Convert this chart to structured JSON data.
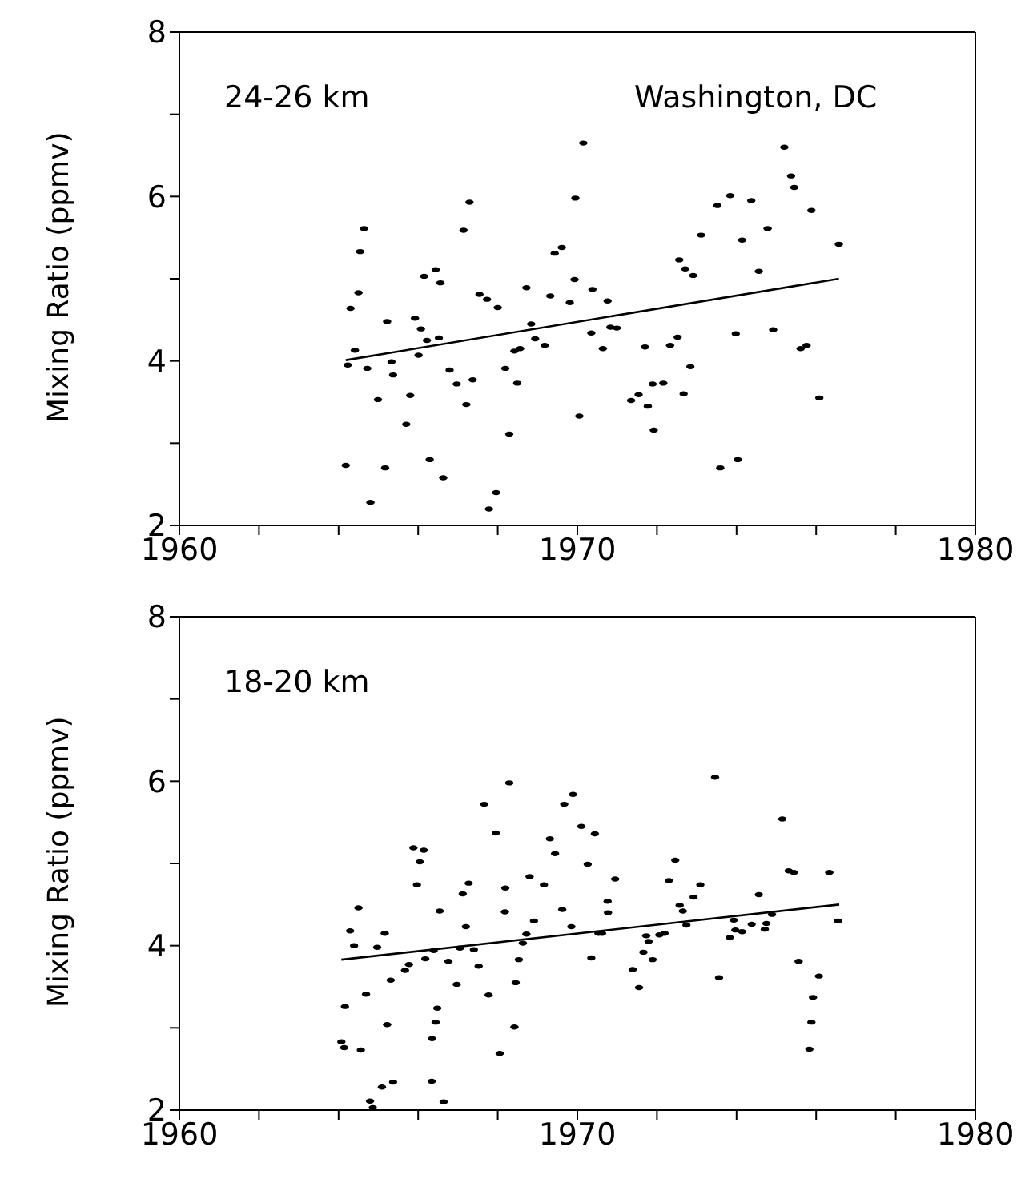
{
  "chart_data": [
    {
      "type": "scatter",
      "ylabel": "Mixing Ratio (ppmv)",
      "annotations": [
        "24-26 km",
        "Washington, DC"
      ],
      "xlim": [
        1960,
        1980
      ],
      "ylim": [
        2,
        8
      ],
      "xticks": [
        1960,
        {
          "value": 1962,
          "label": null
        },
        {
          "value": 1964,
          "label": null
        },
        {
          "value": 1966,
          "label": null
        },
        {
          "value": 1968,
          "label": null
        },
        1970,
        {
          "value": 1972,
          "label": null
        },
        {
          "value": 1974,
          "label": null
        },
        {
          "value": 1976,
          "label": null
        },
        {
          "value": 1978,
          "label": null
        },
        1980
      ],
      "yticks": [
        2,
        {
          "value": 3,
          "label": null
        },
        4,
        {
          "value": 5,
          "label": null
        },
        6,
        {
          "value": 7,
          "label": null
        },
        8
      ],
      "grid": false,
      "legend": false,
      "series": [
        {
          "marker": "circle",
          "color": "#000000",
          "x": [
            1964.18,
            1964.23,
            1964.3,
            1964.41,
            1964.5,
            1964.54,
            1964.64,
            1964.72,
            1964.8,
            1964.99,
            1965.17,
            1965.22,
            1965.33,
            1965.37,
            1965.7,
            1965.8,
            1965.92,
            1966.07,
            1966.01,
            1966.15,
            1966.22,
            1966.29,
            1966.44,
            1966.52,
            1966.56,
            1966.63,
            1966.79,
            1966.97,
            1967.14,
            1967.21,
            1967.29,
            1967.37,
            1967.54,
            1967.73,
            1967.78,
            1967.96,
            1968.0,
            1968.19,
            1968.29,
            1968.42,
            1968.49,
            1968.56,
            1968.72,
            1968.84,
            1968.94,
            1969.18,
            1969.32,
            1969.43,
            1969.61,
            1969.81,
            1969.95,
            1969.93,
            1970.05,
            1970.15,
            1970.38,
            1970.35,
            1970.64,
            1970.76,
            1970.83,
            1970.99,
            1971.35,
            1971.54,
            1971.7,
            1971.77,
            1971.89,
            1972.16,
            1971.92,
            1972.33,
            1972.52,
            1972.56,
            1972.71,
            1972.67,
            1972.84,
            1972.91,
            1973.11,
            1973.52,
            1973.59,
            1973.84,
            1973.98,
            1974.03,
            1974.14,
            1974.37,
            1974.56,
            1974.78,
            1974.92,
            1975.2,
            1975.37,
            1975.45,
            1975.61,
            1975.76,
            1975.88,
            1976.08,
            1976.57
          ],
          "values": [
            2.73,
            3.95,
            4.64,
            4.13,
            4.83,
            5.33,
            5.61,
            3.91,
            2.28,
            3.53,
            2.7,
            4.48,
            3.99,
            3.83,
            3.23,
            3.58,
            4.52,
            4.39,
            4.07,
            5.03,
            4.25,
            2.8,
            5.11,
            4.28,
            4.95,
            2.58,
            3.89,
            3.72,
            5.59,
            3.47,
            5.93,
            3.77,
            4.81,
            4.75,
            2.2,
            2.4,
            4.65,
            3.91,
            3.11,
            4.12,
            3.73,
            4.15,
            4.89,
            4.45,
            4.27,
            4.19,
            4.79,
            5.31,
            5.38,
            4.71,
            5.98,
            4.99,
            3.33,
            6.65,
            4.87,
            4.34,
            4.15,
            4.73,
            4.41,
            4.4,
            3.52,
            3.59,
            4.17,
            3.45,
            3.72,
            3.73,
            3.16,
            4.19,
            4.29,
            5.23,
            5.12,
            3.6,
            3.93,
            5.04,
            5.53,
            5.89,
            2.7,
            6.01,
            4.33,
            2.8,
            5.47,
            5.95,
            5.09,
            5.61,
            4.38,
            6.6,
            6.25,
            6.11,
            4.15,
            4.19,
            5.83,
            3.55,
            5.42
          ]
        },
        {
          "type": "line",
          "marker": "none",
          "color": "#000000",
          "x": [
            1964.18,
            1976.57
          ],
          "values": [
            4.01,
            5.0
          ]
        }
      ]
    },
    {
      "type": "scatter",
      "ylabel": "Mixing Ratio (ppmv)",
      "annotations": [
        "18-20 km"
      ],
      "xlim": [
        1960,
        1980
      ],
      "ylim": [
        2,
        8
      ],
      "xticks": [
        1960,
        {
          "value": 1962,
          "label": null
        },
        {
          "value": 1964,
          "label": null
        },
        {
          "value": 1966,
          "label": null
        },
        {
          "value": 1968,
          "label": null
        },
        1970,
        {
          "value": 1972,
          "label": null
        },
        {
          "value": 1974,
          "label": null
        },
        {
          "value": 1976,
          "label": null
        },
        {
          "value": 1978,
          "label": null
        },
        1980
      ],
      "yticks": [
        2,
        {
          "value": 3,
          "label": null
        },
        4,
        {
          "value": 5,
          "label": null
        },
        6,
        {
          "value": 7,
          "label": null
        },
        8
      ],
      "grid": false,
      "legend": false,
      "series": [
        {
          "marker": "circle",
          "color": "#000000",
          "x": [
            1964.07,
            1964.14,
            1964.16,
            1964.29,
            1964.39,
            1964.5,
            1964.56,
            1964.69,
            1964.79,
            1964.86,
            1964.97,
            1965.09,
            1965.16,
            1965.22,
            1965.31,
            1965.37,
            1965.67,
            1965.77,
            1965.88,
            1965.97,
            1966.04,
            1966.14,
            1966.18,
            1966.34,
            1966.35,
            1966.39,
            1966.44,
            1966.48,
            1966.54,
            1966.64,
            1966.76,
            1966.97,
            1967.05,
            1967.12,
            1967.2,
            1967.27,
            1967.4,
            1967.52,
            1967.66,
            1967.77,
            1967.95,
            1968.05,
            1968.18,
            1968.19,
            1968.29,
            1968.42,
            1968.45,
            1968.53,
            1968.63,
            1968.72,
            1968.8,
            1968.91,
            1969.16,
            1969.31,
            1969.44,
            1969.62,
            1969.67,
            1969.85,
            1969.89,
            1970.1,
            1970.26,
            1970.35,
            1970.44,
            1970.53,
            1970.62,
            1970.76,
            1970.77,
            1970.95,
            1971.39,
            1971.55,
            1971.66,
            1971.73,
            1971.79,
            1971.89,
            1972.06,
            1972.19,
            1972.3,
            1972.46,
            1972.57,
            1972.65,
            1972.74,
            1972.92,
            1973.09,
            1973.46,
            1973.56,
            1973.83,
            1973.93,
            1973.97,
            1974.14,
            1974.38,
            1974.56,
            1974.71,
            1974.75,
            1974.89,
            1975.15,
            1975.31,
            1975.44,
            1975.56,
            1975.83,
            1975.88,
            1975.92,
            1976.07,
            1976.33,
            1976.55
          ],
          "values": [
            2.83,
            2.76,
            3.26,
            4.18,
            4.0,
            4.46,
            2.73,
            3.41,
            2.11,
            2.03,
            3.98,
            2.28,
            4.15,
            3.04,
            3.58,
            2.34,
            3.7,
            3.77,
            5.19,
            4.74,
            5.02,
            5.16,
            3.84,
            2.35,
            2.87,
            3.94,
            3.07,
            3.24,
            4.42,
            2.1,
            3.81,
            3.53,
            3.97,
            4.63,
            4.23,
            4.76,
            3.95,
            3.75,
            5.72,
            3.4,
            5.37,
            2.69,
            4.41,
            4.7,
            5.98,
            3.01,
            3.55,
            3.83,
            4.03,
            4.14,
            4.84,
            4.3,
            4.74,
            5.3,
            5.12,
            4.44,
            5.72,
            4.23,
            5.84,
            5.45,
            4.99,
            3.85,
            5.36,
            4.15,
            4.15,
            4.54,
            4.4,
            4.81,
            3.71,
            3.49,
            3.92,
            4.12,
            4.05,
            3.83,
            4.13,
            4.15,
            4.79,
            5.04,
            4.49,
            4.42,
            4.25,
            4.59,
            4.74,
            6.05,
            3.61,
            4.1,
            4.31,
            4.19,
            4.17,
            4.26,
            4.62,
            4.2,
            4.27,
            4.38,
            5.54,
            4.91,
            4.89,
            3.81,
            2.74,
            3.07,
            3.37,
            3.63,
            4.89,
            4.3
          ]
        },
        {
          "type": "line",
          "marker": "none",
          "color": "#000000",
          "x": [
            1964.07,
            1976.58
          ],
          "values": [
            3.83,
            4.5
          ]
        }
      ]
    }
  ]
}
